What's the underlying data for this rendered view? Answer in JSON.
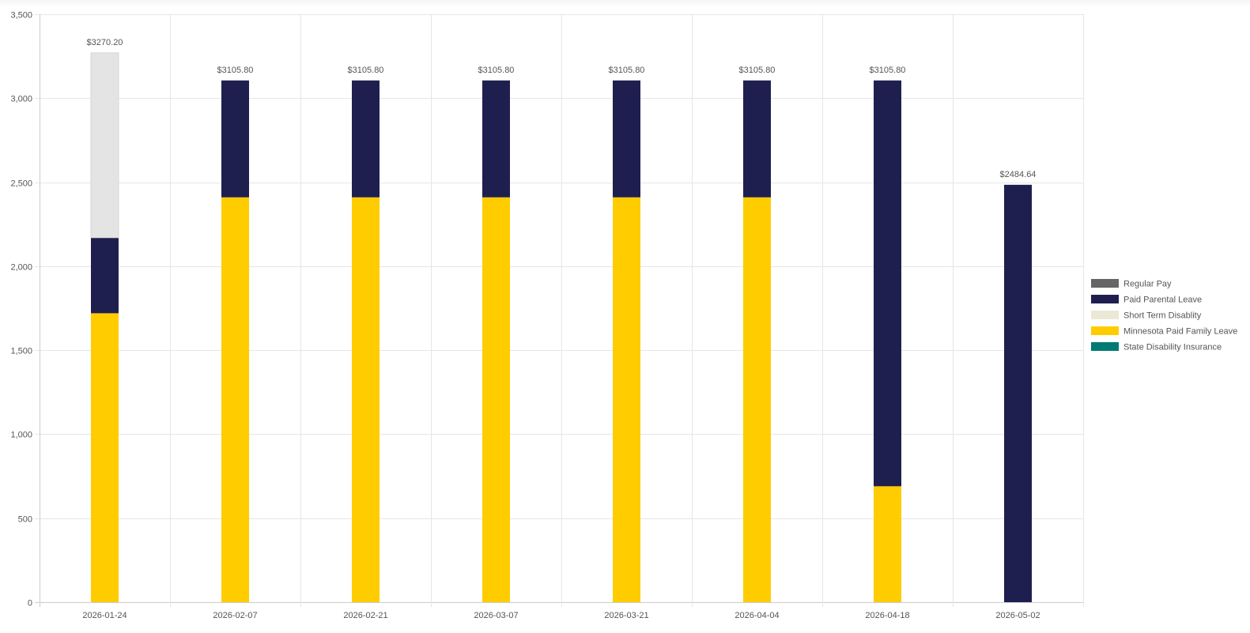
{
  "chart_data": {
    "type": "bar",
    "stacked": true,
    "categories": [
      "2026-01-24",
      "2026-02-07",
      "2026-02-21",
      "2026-03-07",
      "2026-03-21",
      "2026-04-04",
      "2026-04-18",
      "2026-05-02"
    ],
    "ylim": [
      0,
      3500
    ],
    "y_ticks": [
      0,
      500,
      1000,
      1500,
      2000,
      2500,
      3000,
      3500
    ],
    "y_tick_labels": [
      "0",
      "500",
      "1,000",
      "1,500",
      "2,000",
      "2,500",
      "3,000",
      "3,500"
    ],
    "grid": true,
    "legend_position": "right",
    "series": [
      {
        "name": "Regular Pay",
        "color": "#666666",
        "values": [
          0,
          0,
          0,
          0,
          0,
          0,
          0,
          0
        ]
      },
      {
        "name": "Paid Parental Leave",
        "color": "#1f1f4f",
        "values": [
          450,
          695.8,
          695.8,
          695.8,
          695.8,
          695.8,
          2415.8,
          2484.64
        ]
      },
      {
        "name": "Short Term Disablity",
        "color": "#e4e4e4",
        "values": [
          1100.2,
          0,
          0,
          0,
          0,
          0,
          0,
          0
        ]
      },
      {
        "name": "Minnesota Paid Family Leave",
        "color": "#ffcc00",
        "values": [
          1720,
          2410,
          2410,
          2410,
          2410,
          2410,
          690,
          0
        ]
      },
      {
        "name": "State Disability Insurance",
        "color": "#007a73",
        "values": [
          0,
          0,
          0,
          0,
          0,
          0,
          0,
          0
        ]
      }
    ],
    "stack_order": [
      "Minnesota Paid Family Leave",
      "Paid Parental Leave",
      "Short Term Disablity",
      "Regular Pay",
      "State Disability Insurance"
    ],
    "total_labels": [
      "$3270.20",
      "$3105.80",
      "$3105.80",
      "$3105.80",
      "$3105.80",
      "$3105.80",
      "$3105.80",
      "$2484.64"
    ],
    "legend_swatch_colors": {
      "Short Term Disablity": "#ebe8d6"
    }
  }
}
